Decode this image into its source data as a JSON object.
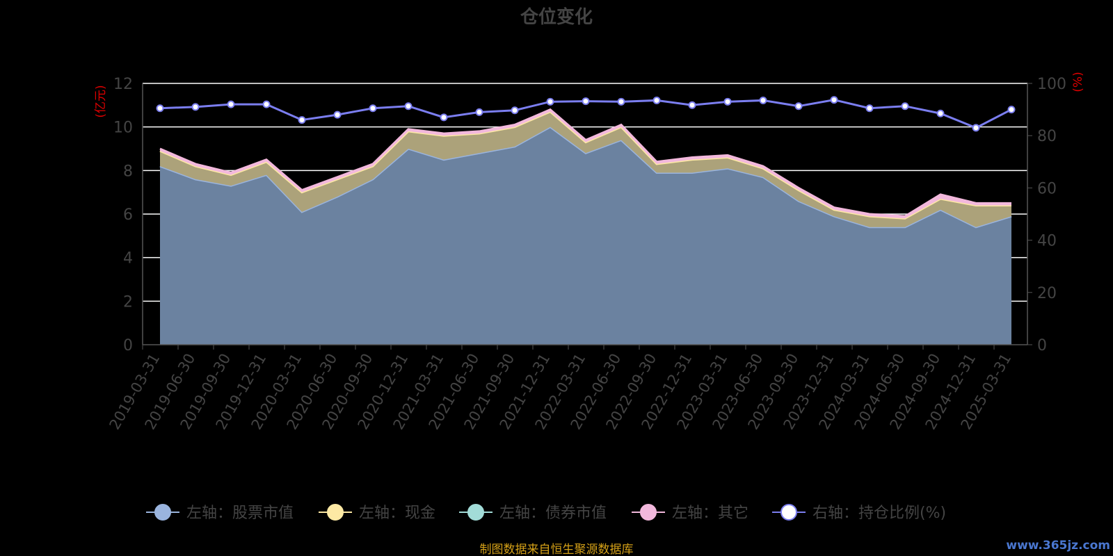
{
  "chart_data": {
    "type": "area",
    "title": "仓位变化",
    "left_axis_unit": "(亿元)",
    "right_axis_unit": "(%)",
    "y_left": {
      "min": 0,
      "max": 12,
      "ticks": [
        0,
        2,
        4,
        6,
        8,
        10,
        12
      ]
    },
    "y_right": {
      "min": 0,
      "max": 100,
      "ticks": [
        0,
        20,
        40,
        60,
        80,
        100
      ]
    },
    "grid": true,
    "legend_position": "bottom",
    "categories": [
      "2019-03-31",
      "2019-06-30",
      "2019-09-30",
      "2019-12-31",
      "2020-03-31",
      "2020-06-30",
      "2020-09-30",
      "2020-12-31",
      "2021-03-31",
      "2021-06-30",
      "2021-09-30",
      "2021-12-31",
      "2022-03-31",
      "2022-06-30",
      "2022-09-30",
      "2022-12-31",
      "2023-03-31",
      "2023-06-30",
      "2023-09-30",
      "2023-12-31",
      "2024-03-31",
      "2024-06-30",
      "2024-09-30",
      "2024-12-31",
      "2025-03-31"
    ],
    "series": [
      {
        "name": "左轴：股票市值",
        "axis": "left",
        "stacked": true,
        "color": "#9ab4de",
        "values": [
          8.2,
          7.6,
          7.3,
          7.8,
          6.1,
          6.8,
          7.6,
          9.0,
          8.5,
          8.8,
          9.1,
          10.0,
          8.8,
          9.4,
          7.9,
          7.9,
          8.1,
          7.7,
          6.6,
          5.9,
          5.4,
          5.4,
          6.2,
          5.4,
          5.9
        ]
      },
      {
        "name": "左轴：现金",
        "axis": "left",
        "stacked": true,
        "color": "#fde9a4",
        "values": [
          0.7,
          0.6,
          0.5,
          0.6,
          0.9,
          0.8,
          0.6,
          0.8,
          1.1,
          0.9,
          0.9,
          0.7,
          0.5,
          0.6,
          0.4,
          0.6,
          0.5,
          0.4,
          0.5,
          0.3,
          0.5,
          0.4,
          0.5,
          1.0,
          0.5
        ]
      },
      {
        "name": "左轴：债券市值",
        "axis": "left",
        "stacked": true,
        "color": "#a2dcd8",
        "values": [
          0,
          0,
          0,
          0,
          0,
          0,
          0,
          0,
          0,
          0,
          0,
          0,
          0,
          0,
          0,
          0,
          0,
          0,
          0,
          0,
          0,
          0,
          0,
          0,
          0
        ]
      },
      {
        "name": "左轴：其它",
        "axis": "left",
        "stacked": true,
        "color": "#f2b8dc",
        "values": [
          0.1,
          0.1,
          0.1,
          0.1,
          0.1,
          0.1,
          0.1,
          0.1,
          0.1,
          0.1,
          0.1,
          0.1,
          0.1,
          0.1,
          0.1,
          0.1,
          0.1,
          0.1,
          0.1,
          0.1,
          0.1,
          0.1,
          0.2,
          0.1,
          0.1
        ]
      },
      {
        "name": "右轴：持仓比例(%)",
        "axis": "right",
        "stacked": false,
        "color": "#7b7ef0",
        "values": [
          90.5,
          91.0,
          92.0,
          92.0,
          86.0,
          88.0,
          90.5,
          91.3,
          87.0,
          89.0,
          89.7,
          93.0,
          93.2,
          93.0,
          93.5,
          91.7,
          93.0,
          93.5,
          91.3,
          93.7,
          90.5,
          91.3,
          88.5,
          83.0,
          90.0
        ]
      }
    ]
  },
  "source_note": "制图数据来自恒生聚源数据库",
  "watermark": "www.365jz.com"
}
